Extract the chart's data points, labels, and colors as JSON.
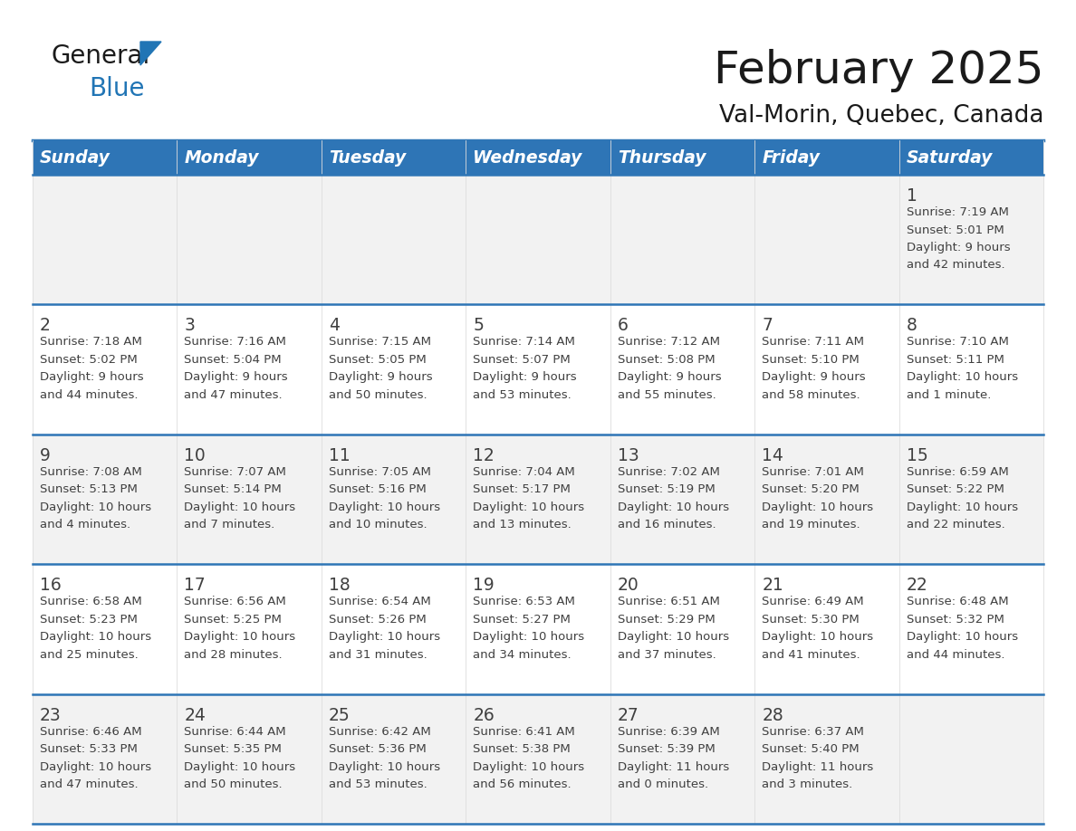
{
  "title": "February 2025",
  "subtitle": "Val-Morin, Quebec, Canada",
  "days_of_week": [
    "Sunday",
    "Monday",
    "Tuesday",
    "Wednesday",
    "Thursday",
    "Friday",
    "Saturday"
  ],
  "header_bg": "#2E75B6",
  "header_text": "#FFFFFF",
  "cell_bg_odd": "#F2F2F2",
  "cell_bg_even": "#FFFFFF",
  "border_color": "#2E75B6",
  "text_color": "#404040",
  "day_num_color": "#404040",
  "title_color": "#1a1a1a",
  "logo_dark": "#1a1a1a",
  "logo_blue": "#2175B5",
  "calendar": [
    [
      null,
      null,
      null,
      null,
      null,
      null,
      1
    ],
    [
      2,
      3,
      4,
      5,
      6,
      7,
      8
    ],
    [
      9,
      10,
      11,
      12,
      13,
      14,
      15
    ],
    [
      16,
      17,
      18,
      19,
      20,
      21,
      22
    ],
    [
      23,
      24,
      25,
      26,
      27,
      28,
      null
    ]
  ],
  "sun_set_data": {
    "1": {
      "sunrise": "7:19 AM",
      "sunset": "5:01 PM",
      "daylight_h": "9 hours",
      "daylight_m": "and 42 minutes."
    },
    "2": {
      "sunrise": "7:18 AM",
      "sunset": "5:02 PM",
      "daylight_h": "9 hours",
      "daylight_m": "and 44 minutes."
    },
    "3": {
      "sunrise": "7:16 AM",
      "sunset": "5:04 PM",
      "daylight_h": "9 hours",
      "daylight_m": "and 47 minutes."
    },
    "4": {
      "sunrise": "7:15 AM",
      "sunset": "5:05 PM",
      "daylight_h": "9 hours",
      "daylight_m": "and 50 minutes."
    },
    "5": {
      "sunrise": "7:14 AM",
      "sunset": "5:07 PM",
      "daylight_h": "9 hours",
      "daylight_m": "and 53 minutes."
    },
    "6": {
      "sunrise": "7:12 AM",
      "sunset": "5:08 PM",
      "daylight_h": "9 hours",
      "daylight_m": "and 55 minutes."
    },
    "7": {
      "sunrise": "7:11 AM",
      "sunset": "5:10 PM",
      "daylight_h": "9 hours",
      "daylight_m": "and 58 minutes."
    },
    "8": {
      "sunrise": "7:10 AM",
      "sunset": "5:11 PM",
      "daylight_h": "10 hours",
      "daylight_m": "and 1 minute."
    },
    "9": {
      "sunrise": "7:08 AM",
      "sunset": "5:13 PM",
      "daylight_h": "10 hours",
      "daylight_m": "and 4 minutes."
    },
    "10": {
      "sunrise": "7:07 AM",
      "sunset": "5:14 PM",
      "daylight_h": "10 hours",
      "daylight_m": "and 7 minutes."
    },
    "11": {
      "sunrise": "7:05 AM",
      "sunset": "5:16 PM",
      "daylight_h": "10 hours",
      "daylight_m": "and 10 minutes."
    },
    "12": {
      "sunrise": "7:04 AM",
      "sunset": "5:17 PM",
      "daylight_h": "10 hours",
      "daylight_m": "and 13 minutes."
    },
    "13": {
      "sunrise": "7:02 AM",
      "sunset": "5:19 PM",
      "daylight_h": "10 hours",
      "daylight_m": "and 16 minutes."
    },
    "14": {
      "sunrise": "7:01 AM",
      "sunset": "5:20 PM",
      "daylight_h": "10 hours",
      "daylight_m": "and 19 minutes."
    },
    "15": {
      "sunrise": "6:59 AM",
      "sunset": "5:22 PM",
      "daylight_h": "10 hours",
      "daylight_m": "and 22 minutes."
    },
    "16": {
      "sunrise": "6:58 AM",
      "sunset": "5:23 PM",
      "daylight_h": "10 hours",
      "daylight_m": "and 25 minutes."
    },
    "17": {
      "sunrise": "6:56 AM",
      "sunset": "5:25 PM",
      "daylight_h": "10 hours",
      "daylight_m": "and 28 minutes."
    },
    "18": {
      "sunrise": "6:54 AM",
      "sunset": "5:26 PM",
      "daylight_h": "10 hours",
      "daylight_m": "and 31 minutes."
    },
    "19": {
      "sunrise": "6:53 AM",
      "sunset": "5:27 PM",
      "daylight_h": "10 hours",
      "daylight_m": "and 34 minutes."
    },
    "20": {
      "sunrise": "6:51 AM",
      "sunset": "5:29 PM",
      "daylight_h": "10 hours",
      "daylight_m": "and 37 minutes."
    },
    "21": {
      "sunrise": "6:49 AM",
      "sunset": "5:30 PM",
      "daylight_h": "10 hours",
      "daylight_m": "and 41 minutes."
    },
    "22": {
      "sunrise": "6:48 AM",
      "sunset": "5:32 PM",
      "daylight_h": "10 hours",
      "daylight_m": "and 44 minutes."
    },
    "23": {
      "sunrise": "6:46 AM",
      "sunset": "5:33 PM",
      "daylight_h": "10 hours",
      "daylight_m": "and 47 minutes."
    },
    "24": {
      "sunrise": "6:44 AM",
      "sunset": "5:35 PM",
      "daylight_h": "10 hours",
      "daylight_m": "and 50 minutes."
    },
    "25": {
      "sunrise": "6:42 AM",
      "sunset": "5:36 PM",
      "daylight_h": "10 hours",
      "daylight_m": "and 53 minutes."
    },
    "26": {
      "sunrise": "6:41 AM",
      "sunset": "5:38 PM",
      "daylight_h": "10 hours",
      "daylight_m": "and 56 minutes."
    },
    "27": {
      "sunrise": "6:39 AM",
      "sunset": "5:39 PM",
      "daylight_h": "11 hours",
      "daylight_m": "and 0 minutes."
    },
    "28": {
      "sunrise": "6:37 AM",
      "sunset": "5:40 PM",
      "daylight_h": "11 hours",
      "daylight_m": "and 3 minutes."
    }
  }
}
